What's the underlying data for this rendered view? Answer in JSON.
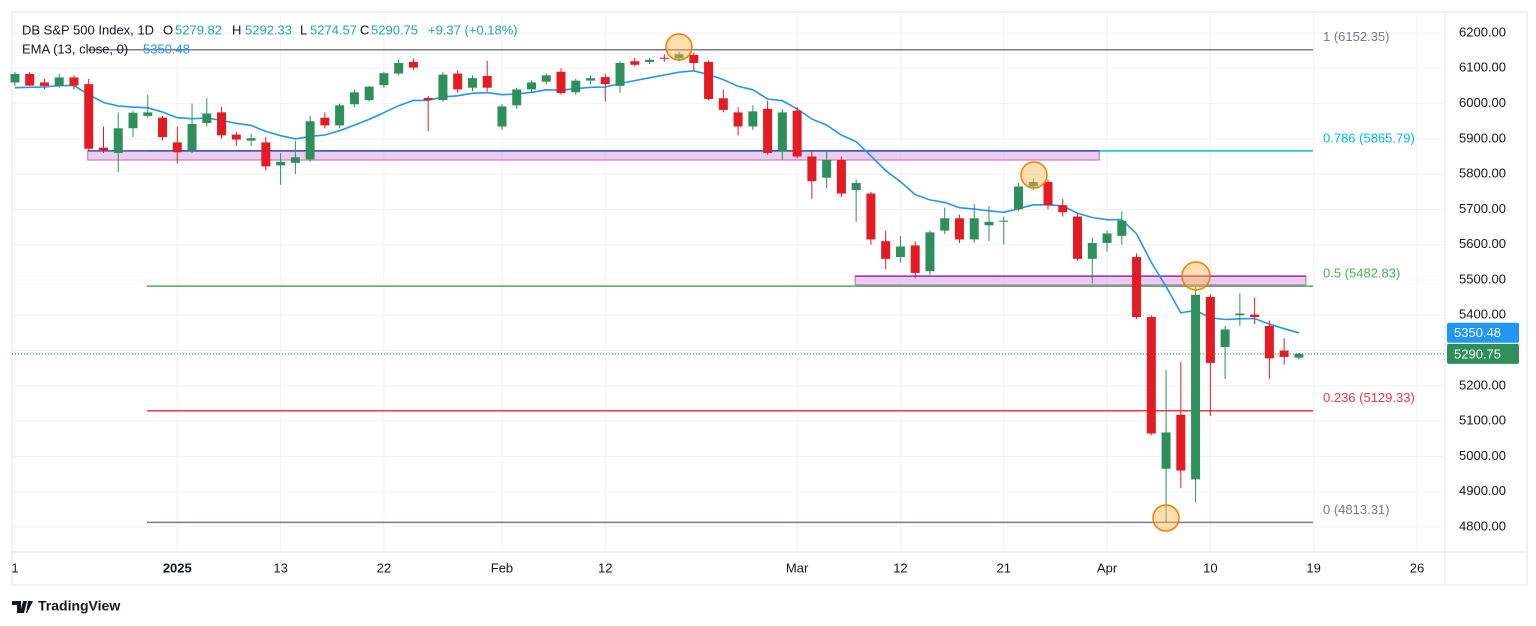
{
  "chart_data": {
    "type": "candlestick",
    "title": "DB S&P 500 Index, 1D",
    "ohlc_letters": [
      "O",
      "H",
      "L",
      "C"
    ],
    "change": "+9.37 (+0.18%)",
    "up_color": "#2f8f5b",
    "down_color": "#e31b23",
    "header_value_color": "#22ab94",
    "candles": [
      [
        6060,
        6090,
        6050,
        6084
      ],
      [
        6084,
        6089,
        6050,
        6051
      ],
      [
        6060,
        6070,
        6040,
        6050
      ],
      [
        6050,
        6085,
        6045,
        6074
      ],
      [
        6074,
        6080,
        6040,
        6051
      ],
      [
        6055,
        6070,
        5865,
        5872
      ],
      [
        5875,
        5935,
        5860,
        5868
      ],
      [
        5860,
        5975,
        5805,
        5930
      ],
      [
        5930,
        5980,
        5905,
        5974
      ],
      [
        5965,
        6025,
        5960,
        5975
      ],
      [
        5960,
        5965,
        5895,
        5905
      ],
      [
        5890,
        5935,
        5830,
        5862
      ],
      [
        5868,
        6000,
        5860,
        5942
      ],
      [
        5945,
        6015,
        5935,
        5972
      ],
      [
        5975,
        5990,
        5900,
        5910
      ],
      [
        5912,
        5920,
        5880,
        5898
      ],
      [
        5895,
        5915,
        5880,
        5902
      ],
      [
        5890,
        5905,
        5810,
        5822
      ],
      [
        5825,
        5860,
        5770,
        5835
      ],
      [
        5832,
        5895,
        5800,
        5848
      ],
      [
        5842,
        5965,
        5835,
        5950
      ],
      [
        5960,
        5975,
        5930,
        5938
      ],
      [
        5938,
        6000,
        5930,
        5995
      ],
      [
        5998,
        6040,
        5990,
        6032
      ],
      [
        6010,
        6050,
        6005,
        6048
      ],
      [
        6052,
        6090,
        6045,
        6086
      ],
      [
        6085,
        6125,
        6080,
        6115
      ],
      [
        6118,
        6128,
        6095,
        6102
      ],
      [
        6016,
        6022,
        5922,
        6010
      ],
      [
        6010,
        6090,
        6005,
        6082
      ],
      [
        6085,
        6095,
        6030,
        6040
      ],
      [
        6045,
        6080,
        6035,
        6072
      ],
      [
        6078,
        6121,
        6035,
        6045
      ],
      [
        5935,
        5998,
        5925,
        5992
      ],
      [
        5995,
        6045,
        5985,
        6040
      ],
      [
        6040,
        6065,
        6030,
        6060
      ],
      [
        6062,
        6085,
        6055,
        6080
      ],
      [
        6090,
        6100,
        6025,
        6030
      ],
      [
        6032,
        6070,
        6025,
        6065
      ],
      [
        6065,
        6080,
        6055,
        6072
      ],
      [
        6075,
        6085,
        6005,
        6055
      ],
      [
        6050,
        6120,
        6030,
        6115
      ],
      [
        6120,
        6130,
        6105,
        6110
      ],
      [
        6118,
        6130,
        6112,
        6124
      ],
      [
        6130,
        6140,
        6118,
        6127
      ],
      [
        6128,
        6147,
        6120,
        6140
      ],
      [
        6138,
        6145,
        6095,
        6115
      ],
      [
        6118,
        6122,
        6010,
        6013
      ],
      [
        6015,
        6040,
        5975,
        5982
      ],
      [
        5975,
        5990,
        5910,
        5935
      ],
      [
        5935,
        5995,
        5925,
        5978
      ],
      [
        5985,
        6008,
        5855,
        5860
      ],
      [
        5865,
        5985,
        5840,
        5975
      ],
      [
        5980,
        5990,
        5845,
        5850
      ],
      [
        5850,
        5865,
        5730,
        5780
      ],
      [
        5790,
        5865,
        5760,
        5840
      ],
      [
        5840,
        5850,
        5735,
        5745
      ],
      [
        5755,
        5785,
        5665,
        5775
      ],
      [
        5745,
        5750,
        5600,
        5615
      ],
      [
        5610,
        5640,
        5530,
        5560
      ],
      [
        5565,
        5625,
        5550,
        5595
      ],
      [
        5598,
        5610,
        5505,
        5520
      ],
      [
        5525,
        5640,
        5515,
        5635
      ],
      [
        5640,
        5705,
        5630,
        5675
      ],
      [
        5675,
        5685,
        5605,
        5615
      ],
      [
        5615,
        5715,
        5605,
        5675
      ],
      [
        5655,
        5710,
        5610,
        5665
      ],
      [
        5665,
        5680,
        5600,
        5668
      ],
      [
        5700,
        5775,
        5695,
        5765
      ],
      [
        5765,
        5788,
        5755,
        5778
      ],
      [
        5778,
        5785,
        5700,
        5712
      ],
      [
        5712,
        5730,
        5680,
        5692
      ],
      [
        5680,
        5690,
        5555,
        5560
      ],
      [
        5560,
        5620,
        5490,
        5605
      ],
      [
        5605,
        5640,
        5580,
        5632
      ],
      [
        5625,
        5695,
        5600,
        5668
      ],
      [
        5565,
        5575,
        5390,
        5395
      ],
      [
        5395,
        5400,
        5060,
        5065
      ],
      [
        4965,
        5245,
        4813,
        5068
      ],
      [
        5118,
        5268,
        4910,
        4960
      ],
      [
        4935,
        5480,
        4870,
        5458
      ],
      [
        5452,
        5460,
        5115,
        5265
      ],
      [
        5310,
        5370,
        5220,
        5360
      ],
      [
        5400,
        5462,
        5370,
        5405
      ],
      [
        5402,
        5450,
        5375,
        5395
      ],
      [
        5370,
        5385,
        5220,
        5278
      ],
      [
        5300,
        5335,
        5260,
        5282
      ],
      [
        5279.82,
        5292.33,
        5274.57,
        5290.75
      ]
    ],
    "ema": {
      "name": "EMA (13, close, 0)",
      "color": "#2196f3",
      "values": [
        6045,
        6046,
        6047,
        6051,
        6051,
        6025,
        6003,
        5993,
        5990,
        5988,
        5976,
        5960,
        5957,
        5959,
        5952,
        5944,
        5938,
        5921,
        5909,
        5900,
        5907,
        5911,
        5923,
        5939,
        5955,
        5974,
        5994,
        6009,
        6009,
        6019,
        6022,
        6029,
        6031,
        6025,
        6027,
        6032,
        6039,
        6038,
        6042,
        6046,
        6047,
        6057,
        6065,
        6073,
        6081,
        6089,
        6093,
        6082,
        6068,
        6049,
        6039,
        6013,
        6008,
        5985,
        5956,
        5939,
        5911,
        5892,
        5852,
        5810,
        5779,
        5742,
        5727,
        5720,
        5705,
        5701,
        5696,
        5692,
        5702,
        5713,
        5713,
        5710,
        5689,
        5677,
        5671,
        5671,
        5631,
        5550,
        5481,
        5407,
        5414,
        5393,
        5388,
        5390,
        5391,
        5375,
        5362,
        5350.48
      ]
    },
    "last_price_color": "#2f8f5b",
    "fib_levels": [
      {
        "level": 1,
        "price": 6152.35,
        "label": "1 (6152.35)",
        "color": "#787b86"
      },
      {
        "level": 0.786,
        "price": 5865.79,
        "label": "0.786 (5865.79)",
        "color": "#00bcd4"
      },
      {
        "level": 0.5,
        "price": 5482.83,
        "label": "0.5 (5482.83)",
        "color": "#4caf50"
      },
      {
        "level": 0.236,
        "price": 5129.33,
        "label": "0.236 (5129.33)",
        "color": "#f23645"
      },
      {
        "level": 0,
        "price": 4813.31,
        "label": "0 (4813.31)",
        "color": "#787b86"
      }
    ],
    "zones": [
      {
        "top": 5866,
        "bottom": 5840,
        "from": 5,
        "to": 73,
        "color": "#3f51b5"
      },
      {
        "top": 5511,
        "bottom": 5486,
        "from": 57,
        "to": 87,
        "color": "#9c27b0"
      }
    ],
    "xlim": [
      -0.2,
      96.9
    ],
    "xticks": [
      {
        "value": 0,
        "label": "1"
      },
      {
        "value": 11,
        "label": "2025"
      },
      {
        "value": 18,
        "label": "13"
      },
      {
        "value": 25,
        "label": "22"
      },
      {
        "value": 33,
        "label": "Feb"
      },
      {
        "value": 40,
        "label": "12"
      },
      {
        "value": 53,
        "label": "Mar"
      },
      {
        "value": 60,
        "label": "12"
      },
      {
        "value": 67,
        "label": "21"
      },
      {
        "value": 74,
        "label": "Apr"
      },
      {
        "value": 81,
        "label": "10"
      },
      {
        "value": 88,
        "label": "19"
      },
      {
        "value": 95,
        "label": "26"
      }
    ],
    "ylim": [
      4729.2,
      6259.5
    ],
    "yticks": [
      {
        "value": 4800,
        "label": "4800.00"
      },
      {
        "value": 4900,
        "label": "4900.00"
      },
      {
        "value": 5000,
        "label": "5000.00"
      },
      {
        "value": 5100,
        "label": "5100.00"
      },
      {
        "value": 5200,
        "label": "5200.00"
      },
      {
        "value": 5300,
        "label": "5300.00"
      },
      {
        "value": 5400,
        "label": "5400.00"
      },
      {
        "value": 5500,
        "label": "5500.00"
      },
      {
        "value": 5600,
        "label": "5600.00"
      },
      {
        "value": 5700,
        "label": "5700.00"
      },
      {
        "value": 5800,
        "label": "5800.00"
      },
      {
        "value": 5900,
        "label": "5900.00"
      },
      {
        "value": 6000,
        "label": "6000.00"
      },
      {
        "value": 6100,
        "label": "6100.00"
      },
      {
        "value": 6200,
        "label": "6200.00"
      }
    ],
    "grid": true,
    "brand": "TradingView"
  }
}
